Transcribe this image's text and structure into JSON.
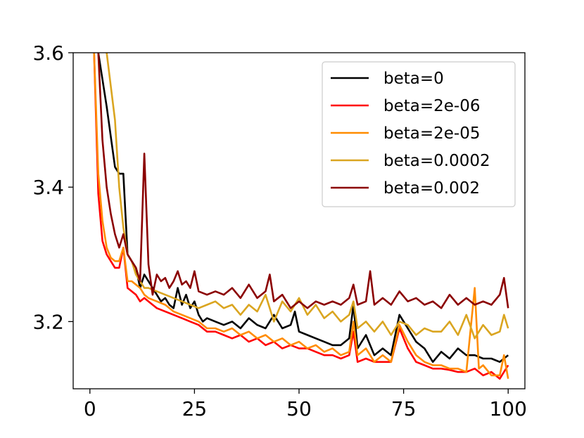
{
  "chart_data": {
    "type": "line",
    "title": "",
    "xlabel": "",
    "ylabel": "",
    "xlim": [
      -4,
      104
    ],
    "ylim": [
      3.1,
      3.6
    ],
    "x_ticks": [
      0,
      25,
      50,
      75,
      100
    ],
    "y_ticks": [
      3.2,
      3.4,
      3.6
    ],
    "x_tick_labels": [
      "0",
      "25",
      "50",
      "75",
      "100"
    ],
    "y_tick_labels": [
      "3.2",
      "3.4",
      "3.6"
    ],
    "legend_position": "top-right",
    "grid": false,
    "series": [
      {
        "name": "beta=0",
        "color": "#000000",
        "points": [
          [
            2,
            3.6
          ],
          [
            4,
            3.52
          ],
          [
            6,
            3.43
          ],
          [
            7,
            3.42
          ],
          [
            8,
            3.42
          ],
          [
            9,
            3.3
          ],
          [
            10,
            3.29
          ],
          [
            11,
            3.28
          ],
          [
            12,
            3.25
          ],
          [
            13,
            3.27
          ],
          [
            14,
            3.26
          ],
          [
            15,
            3.25
          ],
          [
            16,
            3.24
          ],
          [
            17,
            3.23
          ],
          [
            18,
            3.235
          ],
          [
            19,
            3.225
          ],
          [
            20,
            3.22
          ],
          [
            21,
            3.25
          ],
          [
            22,
            3.225
          ],
          [
            23,
            3.24
          ],
          [
            24,
            3.22
          ],
          [
            25,
            3.23
          ],
          [
            26,
            3.21
          ],
          [
            27,
            3.2
          ],
          [
            28,
            3.205
          ],
          [
            30,
            3.2
          ],
          [
            32,
            3.195
          ],
          [
            34,
            3.2
          ],
          [
            36,
            3.19
          ],
          [
            38,
            3.205
          ],
          [
            40,
            3.195
          ],
          [
            42,
            3.19
          ],
          [
            44,
            3.21
          ],
          [
            46,
            3.19
          ],
          [
            48,
            3.195
          ],
          [
            49,
            3.215
          ],
          [
            50,
            3.185
          ],
          [
            52,
            3.18
          ],
          [
            54,
            3.175
          ],
          [
            56,
            3.17
          ],
          [
            58,
            3.165
          ],
          [
            60,
            3.165
          ],
          [
            62,
            3.175
          ],
          [
            63,
            3.225
          ],
          [
            64,
            3.16
          ],
          [
            66,
            3.18
          ],
          [
            68,
            3.15
          ],
          [
            70,
            3.16
          ],
          [
            72,
            3.15
          ],
          [
            74,
            3.21
          ],
          [
            76,
            3.19
          ],
          [
            78,
            3.17
          ],
          [
            80,
            3.16
          ],
          [
            82,
            3.14
          ],
          [
            84,
            3.155
          ],
          [
            86,
            3.145
          ],
          [
            88,
            3.16
          ],
          [
            90,
            3.15
          ],
          [
            92,
            3.15
          ],
          [
            94,
            3.145
          ],
          [
            96,
            3.145
          ],
          [
            98,
            3.14
          ],
          [
            100,
            3.15
          ]
        ]
      },
      {
        "name": "beta=2e-06",
        "color": "#ff0000",
        "points": [
          [
            1,
            3.6
          ],
          [
            2,
            3.39
          ],
          [
            3,
            3.32
          ],
          [
            4,
            3.3
          ],
          [
            5,
            3.29
          ],
          [
            6,
            3.28
          ],
          [
            7,
            3.28
          ],
          [
            8,
            3.31
          ],
          [
            9,
            3.25
          ],
          [
            10,
            3.245
          ],
          [
            11,
            3.24
          ],
          [
            12,
            3.23
          ],
          [
            13,
            3.235
          ],
          [
            14,
            3.23
          ],
          [
            15,
            3.225
          ],
          [
            16,
            3.22
          ],
          [
            18,
            3.215
          ],
          [
            20,
            3.21
          ],
          [
            22,
            3.205
          ],
          [
            24,
            3.2
          ],
          [
            26,
            3.195
          ],
          [
            28,
            3.185
          ],
          [
            30,
            3.185
          ],
          [
            32,
            3.18
          ],
          [
            34,
            3.175
          ],
          [
            36,
            3.18
          ],
          [
            38,
            3.17
          ],
          [
            40,
            3.175
          ],
          [
            42,
            3.165
          ],
          [
            44,
            3.17
          ],
          [
            46,
            3.16
          ],
          [
            48,
            3.165
          ],
          [
            50,
            3.16
          ],
          [
            52,
            3.16
          ],
          [
            54,
            3.155
          ],
          [
            56,
            3.15
          ],
          [
            58,
            3.15
          ],
          [
            60,
            3.145
          ],
          [
            62,
            3.15
          ],
          [
            63,
            3.185
          ],
          [
            64,
            3.14
          ],
          [
            66,
            3.145
          ],
          [
            68,
            3.14
          ],
          [
            70,
            3.14
          ],
          [
            72,
            3.14
          ],
          [
            74,
            3.19
          ],
          [
            76,
            3.16
          ],
          [
            78,
            3.14
          ],
          [
            80,
            3.135
          ],
          [
            82,
            3.13
          ],
          [
            84,
            3.13
          ],
          [
            86,
            3.128
          ],
          [
            88,
            3.125
          ],
          [
            90,
            3.125
          ],
          [
            92,
            3.13
          ],
          [
            94,
            3.12
          ],
          [
            96,
            3.125
          ],
          [
            98,
            3.115
          ],
          [
            100,
            3.135
          ]
        ]
      },
      {
        "name": "beta=2e-05",
        "color": "#ff8c00",
        "points": [
          [
            1,
            3.6
          ],
          [
            2,
            3.42
          ],
          [
            3,
            3.35
          ],
          [
            4,
            3.31
          ],
          [
            5,
            3.295
          ],
          [
            6,
            3.29
          ],
          [
            7,
            3.29
          ],
          [
            8,
            3.31
          ],
          [
            9,
            3.26
          ],
          [
            10,
            3.26
          ],
          [
            11,
            3.255
          ],
          [
            12,
            3.25
          ],
          [
            13,
            3.24
          ],
          [
            14,
            3.235
          ],
          [
            16,
            3.23
          ],
          [
            18,
            3.225
          ],
          [
            20,
            3.215
          ],
          [
            22,
            3.21
          ],
          [
            24,
            3.205
          ],
          [
            26,
            3.2
          ],
          [
            28,
            3.19
          ],
          [
            30,
            3.19
          ],
          [
            32,
            3.185
          ],
          [
            34,
            3.19
          ],
          [
            36,
            3.18
          ],
          [
            38,
            3.185
          ],
          [
            40,
            3.175
          ],
          [
            42,
            3.18
          ],
          [
            44,
            3.17
          ],
          [
            46,
            3.175
          ],
          [
            48,
            3.165
          ],
          [
            50,
            3.17
          ],
          [
            52,
            3.16
          ],
          [
            54,
            3.165
          ],
          [
            56,
            3.155
          ],
          [
            58,
            3.16
          ],
          [
            60,
            3.15
          ],
          [
            62,
            3.155
          ],
          [
            63,
            3.2
          ],
          [
            64,
            3.15
          ],
          [
            66,
            3.16
          ],
          [
            68,
            3.14
          ],
          [
            70,
            3.15
          ],
          [
            72,
            3.14
          ],
          [
            74,
            3.195
          ],
          [
            76,
            3.17
          ],
          [
            78,
            3.15
          ],
          [
            80,
            3.14
          ],
          [
            82,
            3.135
          ],
          [
            84,
            3.135
          ],
          [
            86,
            3.13
          ],
          [
            88,
            3.13
          ],
          [
            90,
            3.125
          ],
          [
            92,
            3.25
          ],
          [
            93,
            3.13
          ],
          [
            94,
            3.135
          ],
          [
            96,
            3.12
          ],
          [
            98,
            3.12
          ],
          [
            99,
            3.15
          ],
          [
            100,
            3.115
          ]
        ]
      },
      {
        "name": "beta=0.0002",
        "color": "#daa520",
        "points": [
          [
            4,
            3.6
          ],
          [
            6,
            3.5
          ],
          [
            7,
            3.4
          ],
          [
            8,
            3.34
          ],
          [
            9,
            3.3
          ],
          [
            10,
            3.29
          ],
          [
            11,
            3.27
          ],
          [
            12,
            3.26
          ],
          [
            13,
            3.25
          ],
          [
            14,
            3.25
          ],
          [
            16,
            3.245
          ],
          [
            18,
            3.24
          ],
          [
            20,
            3.235
          ],
          [
            22,
            3.23
          ],
          [
            24,
            3.225
          ],
          [
            26,
            3.22
          ],
          [
            28,
            3.225
          ],
          [
            30,
            3.23
          ],
          [
            32,
            3.22
          ],
          [
            34,
            3.225
          ],
          [
            36,
            3.21
          ],
          [
            38,
            3.225
          ],
          [
            40,
            3.215
          ],
          [
            42,
            3.24
          ],
          [
            44,
            3.2
          ],
          [
            46,
            3.23
          ],
          [
            48,
            3.215
          ],
          [
            50,
            3.235
          ],
          [
            52,
            3.21
          ],
          [
            54,
            3.225
          ],
          [
            56,
            3.205
          ],
          [
            58,
            3.215
          ],
          [
            60,
            3.2
          ],
          [
            62,
            3.21
          ],
          [
            63,
            3.23
          ],
          [
            64,
            3.19
          ],
          [
            66,
            3.2
          ],
          [
            68,
            3.185
          ],
          [
            70,
            3.2
          ],
          [
            72,
            3.18
          ],
          [
            74,
            3.2
          ],
          [
            76,
            3.195
          ],
          [
            78,
            3.18
          ],
          [
            80,
            3.19
          ],
          [
            82,
            3.185
          ],
          [
            84,
            3.185
          ],
          [
            86,
            3.2
          ],
          [
            88,
            3.18
          ],
          [
            90,
            3.21
          ],
          [
            92,
            3.175
          ],
          [
            94,
            3.195
          ],
          [
            96,
            3.18
          ],
          [
            98,
            3.185
          ],
          [
            99,
            3.21
          ],
          [
            100,
            3.19
          ]
        ]
      },
      {
        "name": "beta=0.002",
        "color": "#8b0000",
        "points": [
          [
            2,
            3.6
          ],
          [
            3,
            3.47
          ],
          [
            4,
            3.4
          ],
          [
            5,
            3.36
          ],
          [
            6,
            3.33
          ],
          [
            7,
            3.31
          ],
          [
            8,
            3.33
          ],
          [
            9,
            3.3
          ],
          [
            10,
            3.29
          ],
          [
            11,
            3.28
          ],
          [
            12,
            3.26
          ],
          [
            13,
            3.45
          ],
          [
            14,
            3.285
          ],
          [
            15,
            3.24
          ],
          [
            16,
            3.27
          ],
          [
            17,
            3.26
          ],
          [
            18,
            3.265
          ],
          [
            19,
            3.25
          ],
          [
            20,
            3.26
          ],
          [
            21,
            3.275
          ],
          [
            22,
            3.255
          ],
          [
            23,
            3.26
          ],
          [
            24,
            3.25
          ],
          [
            25,
            3.275
          ],
          [
            26,
            3.245
          ],
          [
            28,
            3.24
          ],
          [
            30,
            3.245
          ],
          [
            32,
            3.24
          ],
          [
            34,
            3.25
          ],
          [
            36,
            3.235
          ],
          [
            38,
            3.255
          ],
          [
            40,
            3.235
          ],
          [
            42,
            3.245
          ],
          [
            43,
            3.27
          ],
          [
            44,
            3.23
          ],
          [
            46,
            3.24
          ],
          [
            48,
            3.22
          ],
          [
            50,
            3.23
          ],
          [
            52,
            3.22
          ],
          [
            54,
            3.23
          ],
          [
            56,
            3.225
          ],
          [
            58,
            3.23
          ],
          [
            60,
            3.225
          ],
          [
            62,
            3.235
          ],
          [
            63,
            3.255
          ],
          [
            64,
            3.225
          ],
          [
            66,
            3.23
          ],
          [
            67,
            3.275
          ],
          [
            68,
            3.225
          ],
          [
            70,
            3.235
          ],
          [
            72,
            3.225
          ],
          [
            74,
            3.245
          ],
          [
            76,
            3.23
          ],
          [
            78,
            3.235
          ],
          [
            80,
            3.225
          ],
          [
            82,
            3.23
          ],
          [
            84,
            3.22
          ],
          [
            86,
            3.24
          ],
          [
            88,
            3.225
          ],
          [
            90,
            3.235
          ],
          [
            92,
            3.225
          ],
          [
            94,
            3.23
          ],
          [
            96,
            3.225
          ],
          [
            98,
            3.24
          ],
          [
            99,
            3.265
          ],
          [
            100,
            3.22
          ]
        ]
      }
    ]
  }
}
